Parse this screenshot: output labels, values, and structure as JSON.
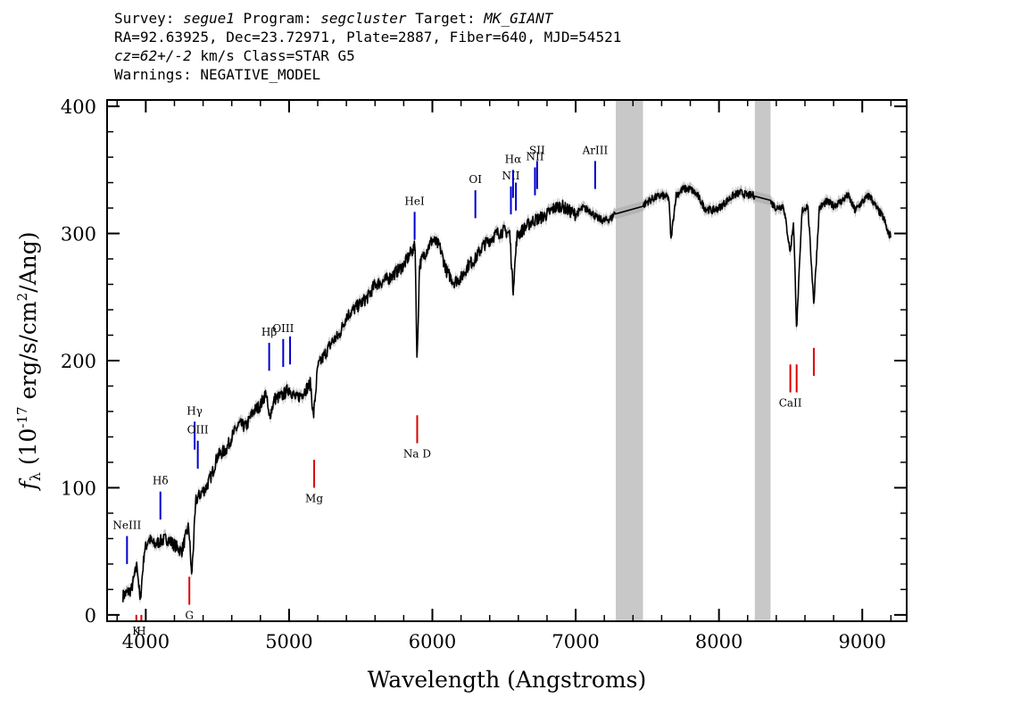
{
  "header": {
    "line1": {
      "survey_label": "Survey:",
      "survey": "segue1",
      "program_label": "Program:",
      "program": "segcluster",
      "target_label": "Target:",
      "target": "MK_GIANT"
    },
    "line2": "RA=92.63925, Dec=23.72971, Plate=2887, Fiber=640, MJD=54521",
    "line3": {
      "cz_label": "cz=62+/-2",
      "rest": " km/s Class=STAR G5"
    },
    "line4": "Warnings: NEGATIVE_MODEL"
  },
  "chart_data": {
    "type": "line",
    "xlabel": "Wavelength (Angstroms)",
    "ylabel": "f_λ (10^-17 erg/s/cm^2/Ang)",
    "xlim": [
      3730,
      9310
    ],
    "ylim": [
      -5,
      405
    ],
    "xticks": [
      4000,
      5000,
      6000,
      7000,
      8000,
      9000
    ],
    "yticks": [
      0,
      100,
      200,
      300,
      400
    ],
    "masked_regions": [
      [
        7280,
        7470
      ],
      [
        8250,
        8360
      ]
    ],
    "series": [
      {
        "x": [
          3840,
          3900,
          3940,
          3960,
          3990,
          4020,
          4060,
          4100,
          4150,
          4200,
          4250,
          4300,
          4320,
          4350,
          4380,
          4420,
          4460,
          4500,
          4560,
          4600,
          4650,
          4700,
          4750,
          4800,
          4840,
          4860,
          4900,
          4950,
          5000,
          5050,
          5100,
          5150,
          5170,
          5200,
          5250,
          5300,
          5350,
          5400,
          5450,
          5500,
          5550,
          5600,
          5650,
          5700,
          5750,
          5800,
          5850,
          5880,
          5893,
          5910,
          5950,
          6000,
          6050,
          6100,
          6150,
          6200,
          6250,
          6300,
          6350,
          6400,
          6450,
          6500,
          6540,
          6563,
          6590,
          6650,
          6700,
          6750,
          6800,
          6850,
          6900,
          6950,
          7000,
          7050,
          7100,
          7150,
          7200,
          7250,
          7280,
          7470,
          7500,
          7550,
          7600,
          7650,
          7665,
          7700,
          7750,
          7800,
          7850,
          7900,
          7950,
          8000,
          8050,
          8100,
          8150,
          8200,
          8250,
          8360,
          8400,
          8450,
          8498,
          8520,
          8542,
          8580,
          8620,
          8662,
          8700,
          8750,
          8800,
          8850,
          8900,
          8950,
          9000,
          9050,
          9100,
          9150,
          9180,
          9200
        ],
        "y": [
          15,
          20,
          40,
          10,
          50,
          60,
          55,
          58,
          60,
          55,
          50,
          70,
          30,
          90,
          95,
          100,
          110,
          125,
          130,
          140,
          150,
          148,
          160,
          165,
          175,
          155,
          170,
          172,
          178,
          170,
          175,
          182,
          155,
          195,
          205,
          215,
          220,
          235,
          240,
          245,
          250,
          260,
          262,
          265,
          270,
          275,
          285,
          290,
          195,
          275,
          285,
          295,
          290,
          270,
          262,
          265,
          275,
          280,
          290,
          295,
          300,
          302,
          300,
          255,
          298,
          305,
          310,
          312,
          315,
          320,
          322,
          318,
          315,
          320,
          318,
          312,
          310,
          312,
          318,
          322,
          325,
          328,
          330,
          328,
          295,
          330,
          335,
          335,
          330,
          320,
          318,
          320,
          325,
          330,
          332,
          330,
          330,
          325,
          320,
          322,
          285,
          310,
          225,
          318,
          322,
          245,
          320,
          325,
          322,
          325,
          330,
          318,
          325,
          330,
          320,
          312,
          300,
          298
        ]
      }
    ],
    "annotations": [
      {
        "label": "NeIII",
        "x": 3869,
        "color": "#0000cc",
        "y0": 40,
        "y1": 62
      },
      {
        "label": "Hδ",
        "x": 4102,
        "color": "#0000cc",
        "y0": 75,
        "y1": 97
      },
      {
        "label": "Hγ",
        "x": 4341,
        "color": "#0000cc",
        "y0": 130,
        "y1": 152
      },
      {
        "label": "OIII",
        "x": 4363,
        "color": "#0000cc",
        "y0": 115,
        "y1": 137
      },
      {
        "label": "Hβ",
        "x": 4861,
        "color": "#0000cc",
        "y0": 192,
        "y1": 214
      },
      {
        "label": "OIII",
        "x": 4959,
        "color": "#0000cc",
        "y0": 195,
        "y1": 217
      },
      {
        "label": "",
        "x": 5007,
        "color": "#0000cc",
        "y0": 197,
        "y1": 219
      },
      {
        "label": "HeI",
        "x": 5876,
        "color": "#0000cc",
        "y0": 295,
        "y1": 317
      },
      {
        "label": "OI",
        "x": 6300,
        "color": "#0000cc",
        "y0": 312,
        "y1": 334
      },
      {
        "label": "NII",
        "x": 6548,
        "color": "#0000cc",
        "y0": 315,
        "y1": 337
      },
      {
        "label": "Hα",
        "x": 6563,
        "color": "#0000cc",
        "y0": 328,
        "y1": 350
      },
      {
        "label": "",
        "x": 6583,
        "color": "#0000cc",
        "y0": 318,
        "y1": 340
      },
      {
        "label": "NII",
        "x": 6716,
        "color": "#0000cc",
        "y0": 330,
        "y1": 352
      },
      {
        "label": "SII",
        "x": 6731,
        "color": "#0000cc",
        "y0": 335,
        "y1": 357
      },
      {
        "label": "ArIII",
        "x": 7136,
        "color": "#0000cc",
        "y0": 335,
        "y1": 357
      },
      {
        "label": "K",
        "x": 3934,
        "color": "#dd0000",
        "y0": -12,
        "y1": 0
      },
      {
        "label": "H",
        "x": 3969,
        "color": "#dd0000",
        "y0": -12,
        "y1": 0
      },
      {
        "label": "G",
        "x": 4304,
        "color": "#dd0000",
        "y0": 8,
        "y1": 30
      },
      {
        "label": "Mg",
        "x": 5175,
        "color": "#dd0000",
        "y0": 100,
        "y1": 122
      },
      {
        "label": "Na D",
        "x": 5894,
        "color": "#dd0000",
        "y0": 135,
        "y1": 157
      },
      {
        "label": "CaII",
        "x": 8498,
        "color": "#dd0000",
        "y0": 175,
        "y1": 197
      },
      {
        "label": "",
        "x": 8542,
        "color": "#dd0000",
        "y0": 175,
        "y1": 197
      },
      {
        "label": "",
        "x": 8662,
        "color": "#dd0000",
        "y0": 188,
        "y1": 210
      }
    ],
    "colors": {
      "spectrum": "#000000",
      "error": "#b0b0b0",
      "mask": "#c8c8c8",
      "emission": "#0000cc",
      "absorption": "#dd0000"
    }
  }
}
